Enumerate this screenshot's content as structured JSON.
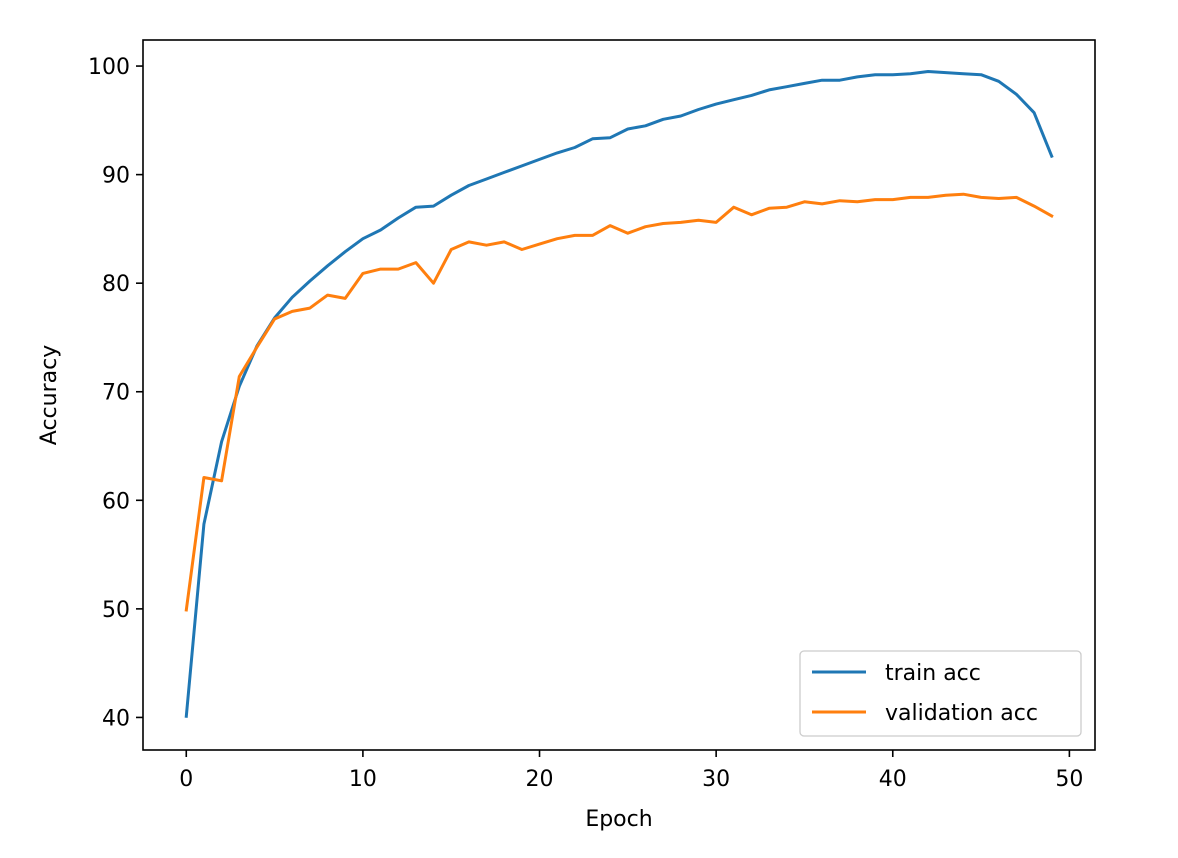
{
  "chart_data": {
    "type": "line",
    "title": "",
    "xlabel": "Epoch",
    "ylabel": "Accuracy",
    "xlim": [
      -2.45,
      51.45
    ],
    "ylim": [
      37.0,
      102.4
    ],
    "xticks": [
      0,
      10,
      20,
      30,
      40,
      50
    ],
    "yticks": [
      40,
      50,
      60,
      70,
      80,
      90,
      100
    ],
    "grid": false,
    "legend_position": "lower-right",
    "x": [
      0,
      1,
      2,
      3,
      4,
      5,
      6,
      7,
      8,
      9,
      10,
      11,
      12,
      13,
      14,
      15,
      16,
      17,
      18,
      19,
      20,
      21,
      22,
      23,
      24,
      25,
      26,
      27,
      28,
      29,
      30,
      31,
      32,
      33,
      34,
      35,
      36,
      37,
      38,
      39,
      40,
      41,
      42,
      43,
      44,
      45,
      46,
      47,
      48,
      49
    ],
    "series": [
      {
        "name": "train acc",
        "color": "#1f77b4",
        "values": [
          40.1,
          57.8,
          65.4,
          70.5,
          74.2,
          76.8,
          78.7,
          80.2,
          81.6,
          82.9,
          84.1,
          84.9,
          86.0,
          87.0,
          87.1,
          88.1,
          89.0,
          89.6,
          90.2,
          90.8,
          91.4,
          92.0,
          92.5,
          93.3,
          93.4,
          94.2,
          94.5,
          95.1,
          95.4,
          96.0,
          96.5,
          96.9,
          97.3,
          97.8,
          98.1,
          98.4,
          98.7,
          98.7,
          99.0,
          99.2,
          99.2,
          99.3,
          99.5,
          99.4,
          99.3,
          99.2,
          98.6,
          97.4,
          95.7,
          91.7
        ]
      },
      {
        "name": "validation acc",
        "color": "#ff7f0e",
        "values": [
          49.9,
          62.1,
          61.8,
          71.4,
          74.1,
          76.7,
          77.4,
          77.7,
          78.9,
          78.6,
          80.9,
          81.3,
          81.3,
          81.9,
          80.0,
          83.1,
          83.8,
          83.5,
          83.8,
          83.1,
          83.6,
          84.1,
          84.4,
          84.4,
          85.3,
          84.6,
          85.2,
          85.5,
          85.6,
          85.8,
          85.6,
          87.0,
          86.3,
          86.9,
          87.0,
          87.5,
          87.3,
          87.6,
          87.5,
          87.7,
          87.7,
          87.9,
          87.9,
          88.1,
          88.2,
          87.9,
          87.8,
          87.9,
          87.1,
          86.2
        ]
      }
    ]
  }
}
